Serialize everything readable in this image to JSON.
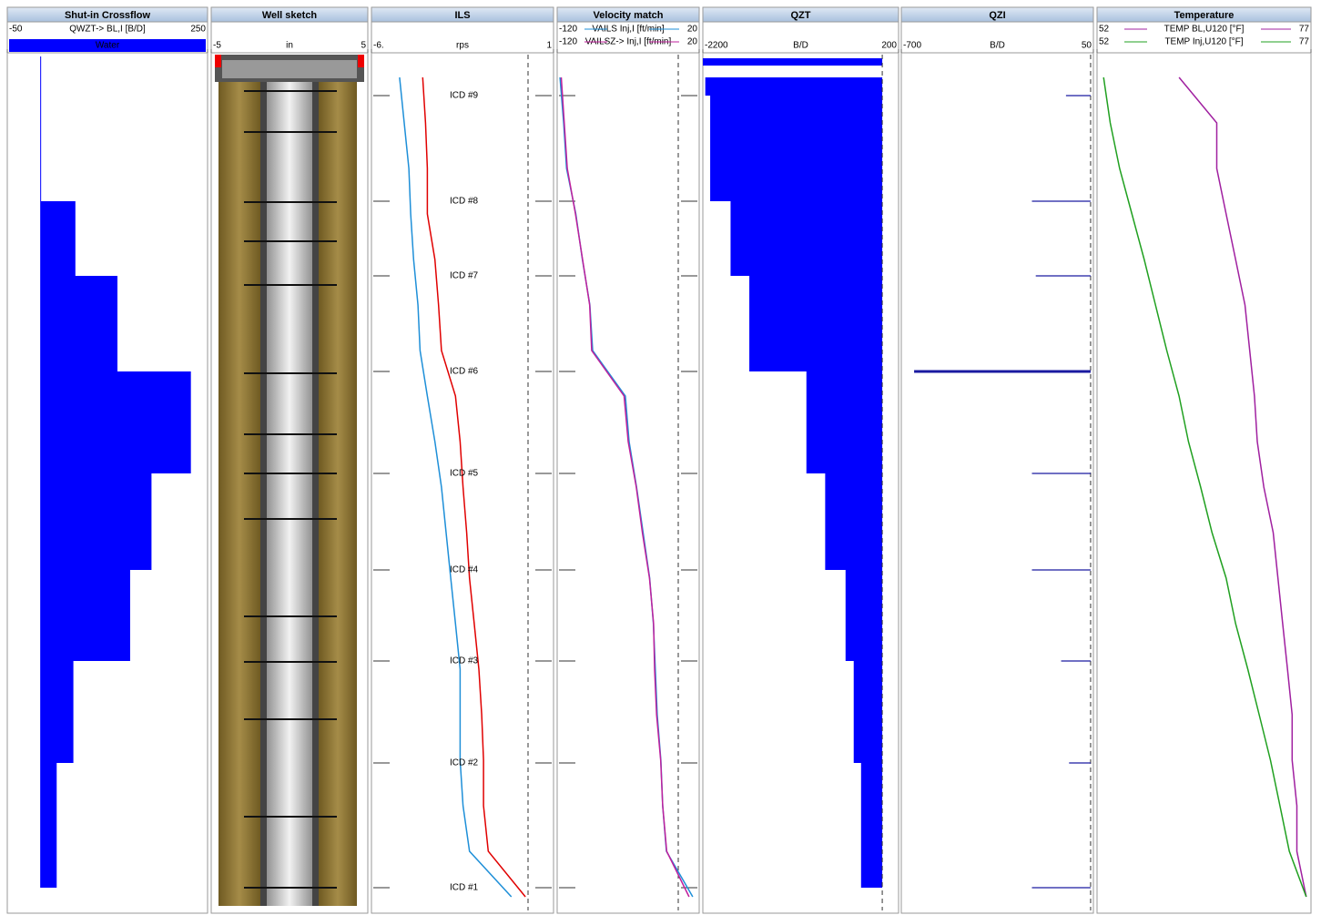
{
  "chart_data": [
    {
      "type": "step",
      "title": "Shut-in Crossflow",
      "xlabel": "QWZT-> BL,I [B/D]",
      "xlim": [
        -50,
        250
      ],
      "xticks": [
        -50,
        250
      ],
      "categories": [
        null,
        null,
        null,
        null,
        null,
        null,
        null,
        null,
        null
      ],
      "series": [
        {
          "name": "Water",
          "color": "#0000ff",
          "values": [
            0,
            0,
            52,
            115,
            225,
            166,
            134,
            49,
            24
          ]
        }
      ]
    },
    {
      "type": "sketch",
      "title": "Well sketch",
      "xlabel": "in",
      "xlim": [
        -5,
        5
      ],
      "xticks": [
        -5,
        5
      ]
    },
    {
      "type": "line",
      "title": "ILS",
      "xlabel": "rps",
      "xlim": [
        -6,
        1
      ],
      "xticks": [
        {
          "value": -6,
          "label": "-6."
        },
        1
      ],
      "annotations": [
        "ICD #9",
        "ICD #8",
        "ICD #7",
        "ICD #6",
        "ICD #5",
        "ICD #4",
        "ICD #3",
        "ICD #2",
        "ICD #1"
      ],
      "series": [
        {
          "color": "#1e8fd8",
          "values": [
            -4.92,
            -4.74,
            -4.56,
            -4.49,
            -4.38,
            -4.21,
            -4.13,
            -3.85,
            -3.56,
            -3.31,
            -3.13,
            -2.95,
            -2.77,
            -2.59,
            -2.59,
            -2.59,
            -2.48,
            -2.23,
            -0.62
          ]
        },
        {
          "color": "#e00000",
          "values": [
            -4.03,
            -3.92,
            -3.85,
            -3.85,
            -3.56,
            -3.42,
            -3.31,
            -2.77,
            -2.59,
            -2.48,
            -2.34,
            -2.23,
            -2.05,
            -1.87,
            -1.76,
            -1.69,
            -1.69,
            -1.51,
            -0.08
          ]
        }
      ]
    },
    {
      "type": "line",
      "title": "Velocity match",
      "xlim": [
        -120,
        20
      ],
      "xticks": [
        -120,
        20
      ],
      "series": [
        {
          "name": "VAILS Inj,I [ft/min]",
          "color": "#1e8fd8",
          "values": [
            -117.2,
            -113.6,
            -110.8,
            -101.6,
            -95.1,
            -87.8,
            -85.0,
            -52.8,
            -49.1,
            -41.7,
            -35.3,
            -28.8,
            -25.1,
            -23.3,
            -21.4,
            -17.8,
            -16.0,
            -12.3,
            13.6
          ]
        },
        {
          "name": "VAILSZ-> Inj,I [ft/min]",
          "color": "#c0209c",
          "values": [
            -116,
            -113,
            -110,
            -102,
            -95,
            -88,
            -86,
            -54,
            -50,
            -42,
            -36,
            -29,
            -25,
            -24,
            -22,
            -18,
            -16,
            -12,
            10
          ]
        }
      ]
    },
    {
      "type": "step",
      "title": "QZT",
      "xlabel": "B/D",
      "xlim": [
        -2200,
        200
      ],
      "xticks": [
        -2200,
        200
      ],
      "categories": [
        null,
        null,
        null,
        null,
        null,
        null,
        null,
        null,
        null
      ],
      "series": [
        {
          "color": "#0000ff",
          "values": [
            -2170,
            -2110,
            -1860,
            -1630,
            -930,
            -700,
            -450,
            -350,
            -260
          ]
        }
      ]
    },
    {
      "type": "stick",
      "title": "QZI",
      "xlabel": "B/D",
      "xlim": [
        -700,
        50
      ],
      "xticks": [
        -700,
        50
      ],
      "series": [
        {
          "color": "#1a1aa0",
          "values": [
            -57,
            -190,
            -175,
            -650,
            -190,
            -190,
            -76,
            -45,
            -190
          ]
        }
      ]
    },
    {
      "type": "line",
      "title": "Temperature",
      "xlim": [
        52,
        77
      ],
      "xticks": [
        52,
        77
      ],
      "series": [
        {
          "name": "TEMP BL,U120 [°F]",
          "color": "#a020a0",
          "values": [
            61.58,
            65.99,
            65.99,
            67.09,
            68.19,
            69.29,
            69.84,
            70.39,
            70.72,
            71.49,
            72.59,
            73.14,
            73.69,
            74.25,
            74.8,
            74.8,
            75.35,
            75.35,
            76.45
          ]
        },
        {
          "name": "TEMP Inj,U120 [°F]",
          "color": "#20a020",
          "values": [
            52.77,
            53.54,
            54.64,
            56.07,
            57.51,
            58.83,
            60.15,
            61.58,
            62.68,
            64.11,
            65.44,
            67.09,
            68.19,
            69.62,
            70.95,
            72.27,
            73.37,
            74.47,
            76.45
          ]
        }
      ]
    }
  ]
}
